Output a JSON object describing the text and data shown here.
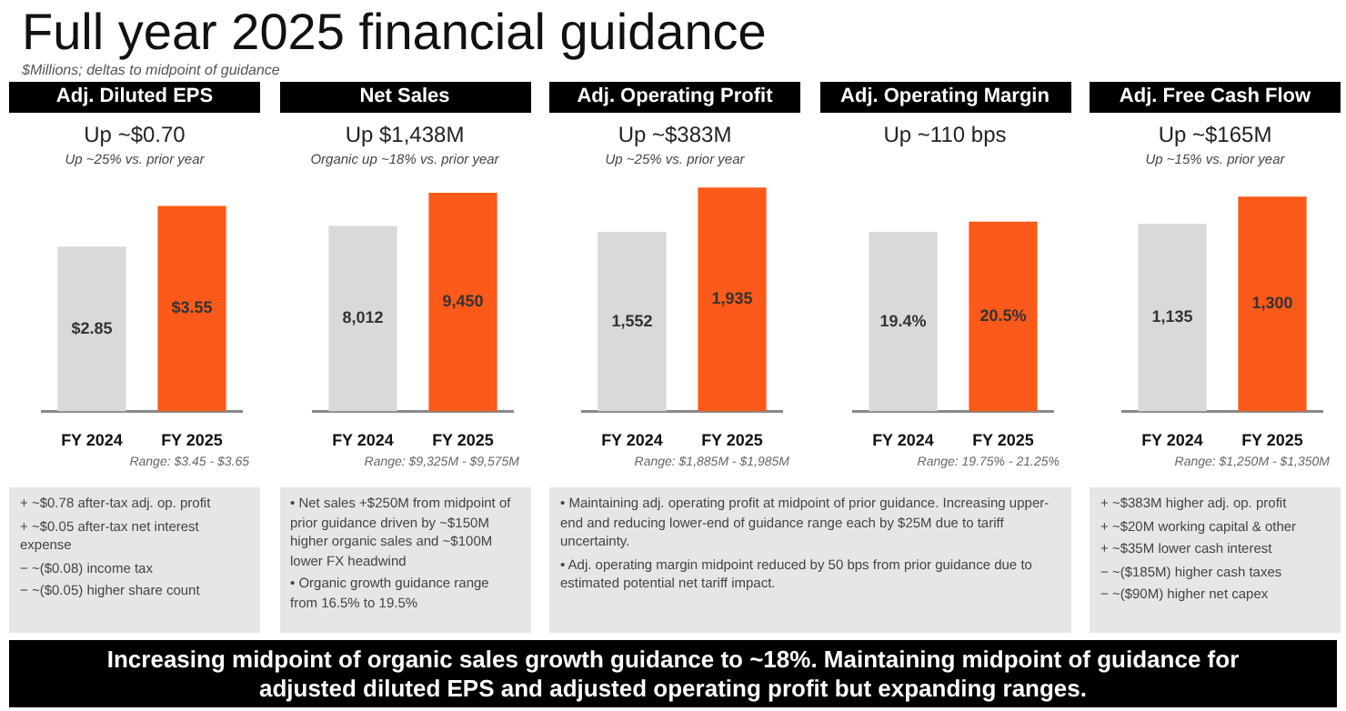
{
  "chart_data": [
    {
      "type": "other",
      "title": "Full year 2025 financial guidance",
      "subtitle": "$Millions; deltas to midpoint of guidance"
    },
    {
      "type": "bar",
      "title": "Adj. Diluted EPS",
      "subtitle": "Up ~$0.70\nUp ~25% vs. prior year",
      "categories": [
        "FY 2024",
        "FY 2025"
      ],
      "values": [
        2.85,
        3.55
      ],
      "colors": [
        "#d9d9d9",
        "#fc5a1a"
      ],
      "value_labels": [
        "$2.85",
        "$3.55"
      ],
      "xlabel": "Range: $3.45 - $3.65",
      "annotations": [
        "+ ~$0.78 after-tax adj. op. profit",
        "+ ~$0.05 after-tax net interest expense",
        "− ~($0.08) income tax",
        "− ~($0.05) higher share count"
      ]
    },
    {
      "type": "bar",
      "title": "Net Sales",
      "subtitle": "Up $1,438M\nOrganic up ~18% vs. prior year",
      "categories": [
        "FY 2024",
        "FY 2025"
      ],
      "values": [
        8012,
        9450
      ],
      "colors": [
        "#d9d9d9",
        "#fc5a1a"
      ],
      "value_labels": [
        "8,012",
        "9,450"
      ],
      "xlabel": "Range: $9,325M - $9,575M",
      "annotations": [
        "• Net sales +$250M from midpoint of prior guidance driven by ~$150M higher organic sales and ~$100M lower FX headwind",
        "• Organic growth guidance range from 16.5% to 19.5%"
      ]
    },
    {
      "type": "bar",
      "title": "Adj. Operating Profit",
      "subtitle": "Up ~$383M\nUp ~25% vs. prior year",
      "categories": [
        "FY 2024",
        "FY 2025"
      ],
      "values": [
        1552,
        1935
      ],
      "colors": [
        "#d9d9d9",
        "#fc5a1a"
      ],
      "value_labels": [
        "1,552",
        "1,935"
      ],
      "xlabel": "Range: $1,885M - $1,985M",
      "annotations": [
        "• Maintaining adj. operating profit at midpoint of prior guidance. Increasing upper-end and reducing lower-end of guidance range each by $25M due to tariff uncertainty.",
        "• Adj. operating margin midpoint reduced by 50 bps from prior guidance due to estimated potential net tariff impact."
      ]
    },
    {
      "type": "bar",
      "title": "Adj. Operating Margin",
      "subtitle": "Up ~110 bps",
      "categories": [
        "FY 2024",
        "FY 2025"
      ],
      "values": [
        19.4,
        20.5
      ],
      "colors": [
        "#d9d9d9",
        "#fc5a1a"
      ],
      "value_labels": [
        "19.4%",
        "20.5%"
      ],
      "xlabel": "Range: 19.75% - 21.25%"
    },
    {
      "type": "bar",
      "title": "Adj. Free Cash Flow",
      "subtitle": "Up ~$165M\nUp ~15% vs. prior year",
      "categories": [
        "FY 2024",
        "FY 2025"
      ],
      "values": [
        1135,
        1300
      ],
      "colors": [
        "#d9d9d9",
        "#fc5a1a"
      ],
      "value_labels": [
        "1,135",
        "1,300"
      ],
      "xlabel": "Range: $1,250M - $1,350M",
      "annotations": [
        "+ ~$383M higher adj. op. profit",
        "+ ~$20M working capital & other",
        "+ ~$35M lower cash interest",
        "− ~($185M) higher cash taxes",
        "− ~($90M) higher net capex"
      ]
    },
    {
      "type": "other",
      "annotations": [
        "Increasing midpoint of organic sales growth guidance to ~18%.  Maintaining midpoint of guidance for adjusted diluted EPS and adjusted operating profit but expanding ranges."
      ]
    }
  ]
}
